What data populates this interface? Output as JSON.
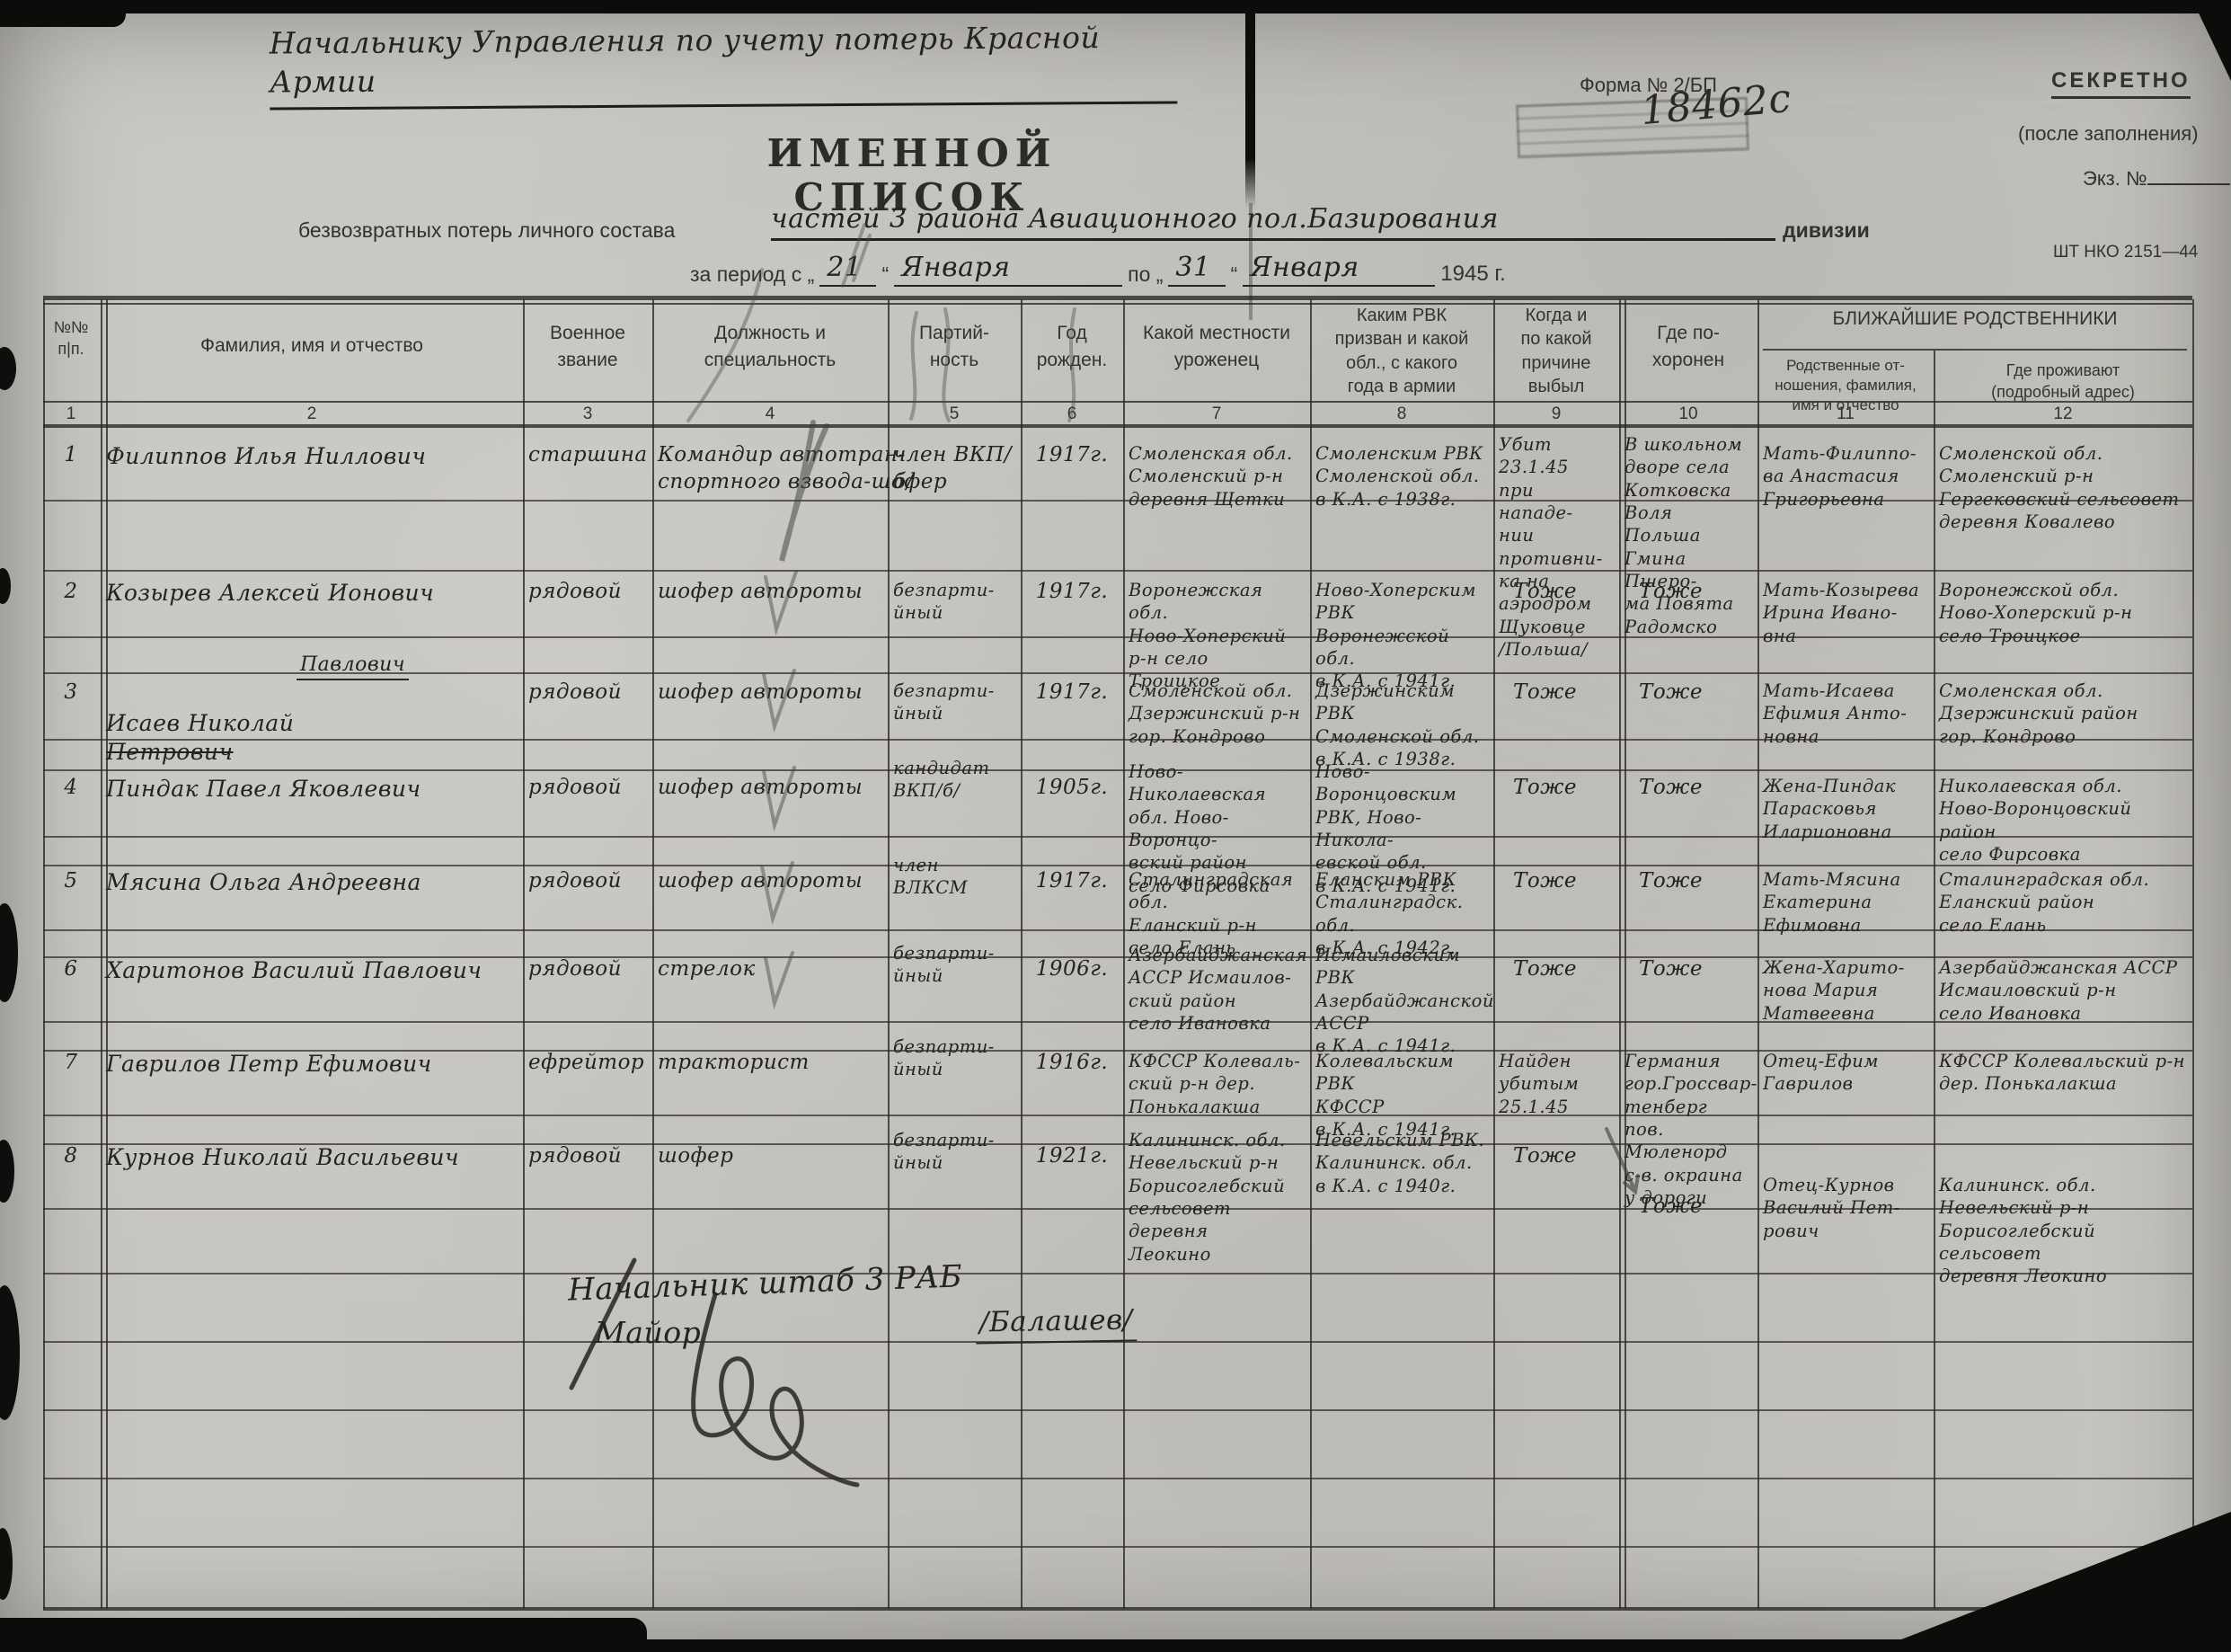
{
  "doc": {
    "addressee": "Начальнику Управления по учету потерь Красной Армии",
    "form_number": "Форма № 2/БП",
    "secret": "СЕКРЕТНО",
    "secret_note": "(после заполнения)",
    "copy_no": "Экз. №",
    "stamp_number": "18462с",
    "title": "ИМЕННОЙ СПИСОК",
    "subtitle_printed": "безвозвратных потерь личного состава",
    "unit_handwritten": "частей 3 района Авиационного пол.Базирования",
    "division_label": "дивизии",
    "form_code": "ШТ НКО 2151—44",
    "period": {
      "label": "за период с „",
      "from_day": "21",
      "close1": "“",
      "from_month": "Января",
      "po": "по „",
      "to_day": "31",
      "close2": "“",
      "to_month": "Января",
      "year": "1945 г."
    }
  },
  "table": {
    "group_header": "БЛИЖАЙШИЕ РОДСТВЕННИКИ",
    "columns": [
      {
        "num": "1",
        "label": "№№\nп|п."
      },
      {
        "num": "2",
        "label": "Фамилия, имя и отчество"
      },
      {
        "num": "3",
        "label": "Военное\nзвание"
      },
      {
        "num": "4",
        "label": "Должность и\nспециальность"
      },
      {
        "num": "5",
        "label": "Партий-\nность"
      },
      {
        "num": "6",
        "label": "Год\nрожден."
      },
      {
        "num": "7",
        "label": "Какой местности\nуроженец"
      },
      {
        "num": "8",
        "label": "Каким РВК\nпризван и какой\nобл., с какого\nгода в армии"
      },
      {
        "num": "9",
        "label": "Когда и\nпо какой\nпричине\nвыбыл"
      },
      {
        "num": "10",
        "label": "Где по-\nхоронен"
      },
      {
        "num": "11",
        "label": "Родственные от-\nношения, фамилия,\nимя и отчество"
      },
      {
        "num": "12",
        "label": "Где проживают\n(подробный адрес)"
      }
    ],
    "rows": [
      {
        "num": "1",
        "name": "Филиппов Илья Ниллович",
        "name_struck": "",
        "name_correction": "",
        "rank": "старшина",
        "position": "Командир автотран-\nспортного взвода-шофер",
        "party": "член ВКП/б/",
        "year": "1917г.",
        "birthplace": "Смоленская обл.\nСмоленский р-н\nдеревня Щетки",
        "drafted": "Смоленским РВК\nСмоленской обл.\nв К.А. с 1938г.",
        "fate": "Убит 23.1.45\nпри нападе-\nнии противни-\nка на аэродром\nЩуковце\n/Польша/",
        "buried": "В школьном\nдворе села\nКотковска\nВоля Польша\nГмина Пшеро-\nма Повята\nРадомско",
        "relatives": "Мать-Филиппо-\nва Анастасия\nГригорьевна",
        "address": "Смоленской обл.\nСмоленский р-н\nГергековский сельсовет\nдеревня Ковалево"
      },
      {
        "num": "2",
        "name": "Козырев Алексей Ионович",
        "name_struck": "",
        "name_correction": "",
        "rank": "рядовой",
        "position": "шофер автороты",
        "party": "безпарти-\nйный",
        "year": "1917г.",
        "birthplace": "Воронежская обл.\nНово-Хоперский\nр-н село Троицкое",
        "drafted": "Ново-Хоперским РВК\nВоронежской обл.\nв К.А. с 1941г.",
        "fate": "Тоже",
        "buried": "Тоже",
        "relatives": "Мать-Козырева\nИрина Ивано-\nвна",
        "address": "Воронежской обл.\nНово-Хоперский р-н\nсело Троицкое"
      },
      {
        "num": "3",
        "name": "Исаев Николай",
        "name_struck": "Петрович",
        "name_correction": "Павлович",
        "rank": "рядовой",
        "position": "шофер автороты",
        "party": "безпарти-\nйный",
        "year": "1917г.",
        "birthplace": "Смоленской обл.\nДзержинский р-н\nгор. Кондрово",
        "drafted": "Дзержинским РВК\nСмоленской обл.\nв К.А. с 1938г.",
        "fate": "Тоже",
        "buried": "Тоже",
        "relatives": "Мать-Исаева\nЕфимия Анто-\nновна",
        "address": "Смоленская обл.\nДзержинский район\nгор. Кондрово"
      },
      {
        "num": "4",
        "name": "Пиндак Павел Яковлевич",
        "name_struck": "",
        "name_correction": "",
        "rank": "рядовой",
        "position": "шофер автороты",
        "party": "кандидат\nВКП/б/",
        "year": "1905г.",
        "birthplace": "Ново-Николаевская\nобл. Ново-Воронцо-\nвский район\nсело Фирсовка",
        "drafted": "Ново-Воронцовским\nРВК, Ново-Никола-\nевской обл.\nв К.А. с 1941г.",
        "fate": "Тоже",
        "buried": "Тоже",
        "relatives": "Жена-Пиндак\nПарасковья\nИларионовна",
        "address": "Николаевская обл.\nНово-Воронцовский район\nсело Фирсовка"
      },
      {
        "num": "5",
        "name": "Мясина Ольга Андреевна",
        "name_struck": "",
        "name_correction": "",
        "rank": "рядовой",
        "position": "шофер автороты",
        "party": "член\nВЛКСМ",
        "year": "1917г.",
        "birthplace": "Сталинградская обл.\nЕланский р-н\nсело Елань",
        "drafted": "Еланским РВК\nСталинградск. обл.\nв К.А. с 1942г.",
        "fate": "Тоже",
        "buried": "Тоже",
        "relatives": "Мать-Мясина\nЕкатерина\nЕфимовна",
        "address": "Сталинградская обл.\nЕланский район\nсело Елань"
      },
      {
        "num": "6",
        "name": "Харитонов Василий Павлович",
        "name_struck": "",
        "name_correction": "",
        "rank": "рядовой",
        "position": "стрелок",
        "party": "безпарти-\nйный",
        "year": "1906г.",
        "birthplace": "Азербайджанская\nАССР Исмаилов-\nский район\nсело Ивановка",
        "drafted": "Исмаиловским РВК\nАзербайджанской\nАССР\nв К.А. с 1941г.",
        "fate": "Тоже",
        "buried": "Тоже",
        "relatives": "Жена-Харито-\nнова Мария\nМатвеевна",
        "address": "Азербайджанская АССР\nИсмаиловский р-н\nсело Ивановка"
      },
      {
        "num": "7",
        "name": "Гаврилов Петр Ефимович",
        "name_struck": "",
        "name_correction": "",
        "rank": "ефрейтор",
        "position": "тракторист",
        "party": "безпарти-\nйный",
        "year": "1916г.",
        "birthplace": "КФССР Колеваль-\nский р-н дер.\nПонькалакша",
        "drafted": "Колевальским РВК\nКФССР\nв К.А. с 1941г.",
        "fate": "Найден\nубитым\n25.1.45",
        "buried": "Германия\nгор.Гроссвар-\nтенберг пов.\nМюленорд\nс-в. окраина\nу дороги",
        "relatives": "Отец-Ефим\nГаврилов",
        "address": "КФССР Колевальский р-н\nдер. Понькалакша"
      },
      {
        "num": "8",
        "name": "Курнов Николай Васильевич",
        "name_struck": "",
        "name_correction": "",
        "rank": "рядовой",
        "position": "шофер",
        "party": "безпарти-\nйный",
        "year": "1921г.",
        "birthplace": "Калининск. обл.\nНевельский р-н\nБорисоглебский\nсельсовет деревня\nЛеокино",
        "drafted": "Невельским РВК.\nКалининск. обл.\nв К.А. с 1940г.",
        "fate": "Тоже",
        "buried": "Тоже",
        "relatives": "Отец-Курнов\nВасилий Пет-\nрович",
        "address": "Калининск. обл.\nНевельский р-н\nБорисоглебский сельсовет\nдеревня Леокино"
      }
    ]
  },
  "footer": {
    "chief": "Начальник штаб 3 РАБ",
    "rank": "Майор",
    "name": "/Балашев/"
  }
}
